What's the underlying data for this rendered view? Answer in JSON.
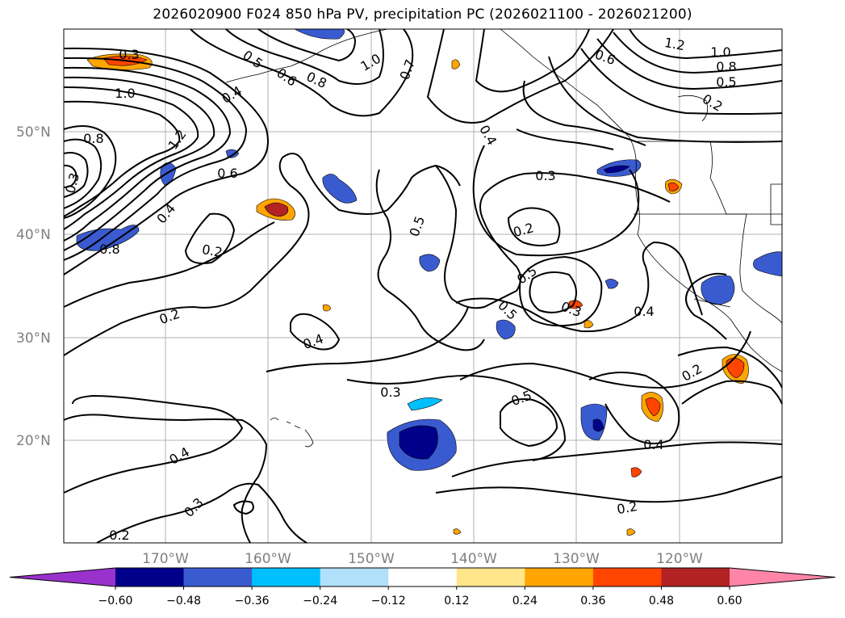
{
  "title": "2026020900 F024 850 hPa PV, precipitation PC (2026021100 - 2026021200)",
  "map": {
    "lat_labels": [
      "50°N",
      "40°N",
      "30°N",
      "20°N"
    ],
    "lon_labels": [
      "170°W",
      "160°W",
      "150°W",
      "140°W",
      "130°W",
      "120°W"
    ],
    "contour_labels": [
      "0.3",
      "0.5",
      "0.6",
      "0.8",
      "1.0",
      "0.7",
      "1.2",
      "1.0",
      "0.8",
      "0.5",
      "0.6",
      "0.4",
      "1.0",
      "0.8",
      "1.2",
      "0.6",
      "0.4",
      "0.3",
      "0.5",
      "0.8",
      "0.2",
      "0.4",
      "0.2",
      "0.5",
      "0.3",
      "0.2",
      "0.5",
      "0.4",
      "0.3",
      "0.4",
      "0.3",
      "0.5",
      "0.2",
      "0.4",
      "0.4",
      "0.3",
      "0.2",
      "0.2",
      "0.2"
    ]
  },
  "colorbar": {
    "ticks": [
      "−0.60",
      "−0.48",
      "−0.36",
      "−0.24",
      "−0.12",
      "0.12",
      "0.24",
      "0.36",
      "0.48",
      "0.60"
    ],
    "colors": [
      "#9932cc",
      "#00008b",
      "#3a5bd0",
      "#00bfff",
      "#b0e0fa",
      "#ffffff",
      "#ffe68a",
      "#ffa500",
      "#ff4500",
      "#b22222",
      "#ff85a8"
    ]
  }
}
